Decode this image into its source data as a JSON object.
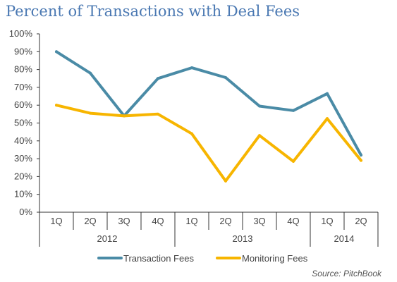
{
  "colors": {
    "title": "#4A78B2",
    "transaction": "#4A8BA6",
    "monitoring": "#F7B500",
    "axis": "#333333",
    "text": "#444444"
  },
  "chart_data": {
    "type": "line",
    "title": "Percent of Transactions with Deal Fees",
    "categories": [
      "1Q",
      "2Q",
      "3Q",
      "4Q",
      "1Q",
      "2Q",
      "3Q",
      "4Q",
      "1Q",
      "2Q"
    ],
    "year_groups": [
      {
        "label": "2012",
        "span": 4
      },
      {
        "label": "2013",
        "span": 4
      },
      {
        "label": "2014",
        "span": 2
      }
    ],
    "y_ticks": [
      "0%",
      "10%",
      "20%",
      "30%",
      "40%",
      "50%",
      "60%",
      "70%",
      "80%",
      "90%",
      "100%"
    ],
    "ylim": [
      0,
      100
    ],
    "y_unit": "%",
    "grid": false,
    "legend_position": "bottom-center",
    "series": [
      {
        "name": "Transaction Fees",
        "color": "#4A8BA6",
        "values": [
          90,
          78,
          54,
          75,
          81,
          75.5,
          59.5,
          57,
          66.5,
          32
        ]
      },
      {
        "name": "Monitoring Fees",
        "color": "#F7B500",
        "values": [
          60,
          55.5,
          54,
          55,
          44,
          17.5,
          43,
          28.5,
          52.5,
          29
        ]
      }
    ]
  },
  "source": "Source: PitchBook"
}
